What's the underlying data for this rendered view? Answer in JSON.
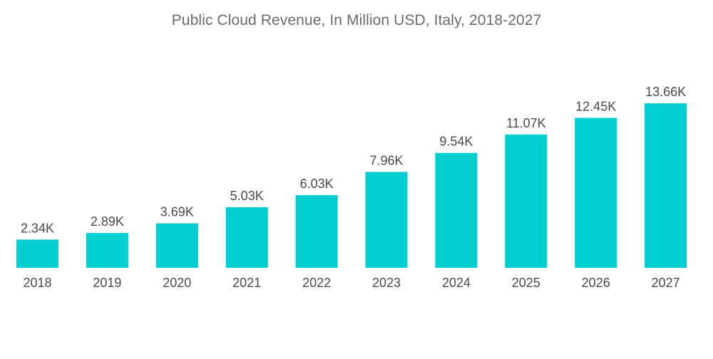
{
  "chart_data": {
    "type": "bar",
    "title": "Public Cloud Revenue, In Million USD, Italy, 2018-2027",
    "xlabel": "",
    "ylabel": "",
    "categories": [
      "2018",
      "2019",
      "2020",
      "2021",
      "2022",
      "2023",
      "2024",
      "2025",
      "2026",
      "2027"
    ],
    "values": [
      2340,
      2890,
      3690,
      5030,
      6030,
      7960,
      9540,
      11070,
      12450,
      13660
    ],
    "value_labels": [
      "2.34K",
      "2.89K",
      "3.69K",
      "5.03K",
      "6.03K",
      "7.96K",
      "9.54K",
      "11.07K",
      "12.45K",
      "13.66K"
    ],
    "ylim": [
      0,
      13660
    ],
    "grid": false,
    "legend": "none",
    "bar_color": "#00CED1"
  }
}
